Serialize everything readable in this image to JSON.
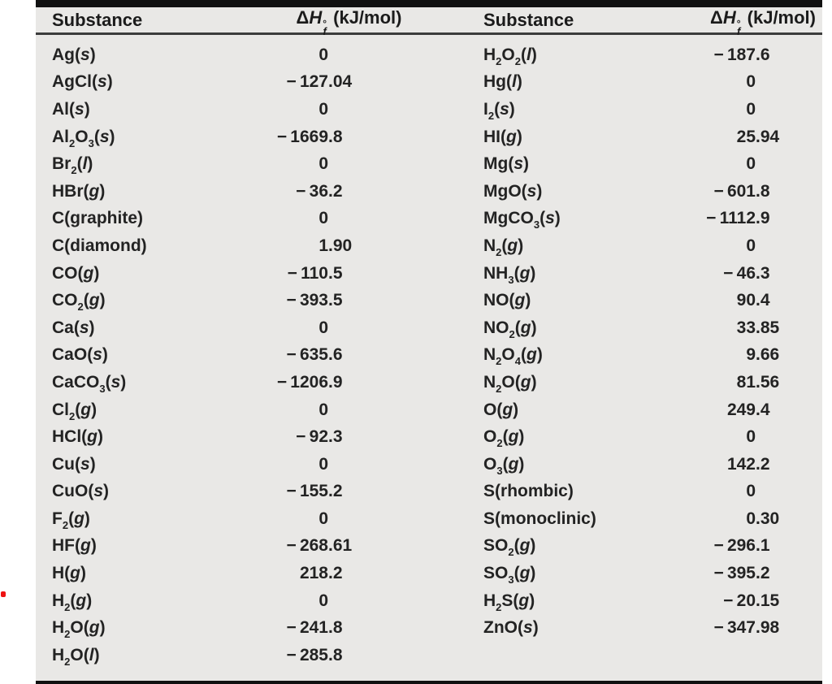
{
  "colors": {
    "panel_bg": "#e9e8e6",
    "border_black": "#111111",
    "header_rule": "#3c3c3c",
    "text": "#232323",
    "red_mark": "#ee1111"
  },
  "table": {
    "header": {
      "substance_label": "Substance",
      "dhf": {
        "delta": "Δ",
        "symbol": "H",
        "sup": "°",
        "sub": "f",
        "unit": " (kJ/mol)"
      }
    },
    "left_rows": [
      {
        "substance": "Ag(s)",
        "value": "0"
      },
      {
        "substance": "AgCl(s)",
        "value": "-127.04"
      },
      {
        "substance": "Al(s)",
        "value": "0"
      },
      {
        "substance": "Al2O3(s)",
        "value": "-1669.8"
      },
      {
        "substance": "Br2(l)",
        "value": "0"
      },
      {
        "substance": "HBr(g)",
        "value": "-36.2"
      },
      {
        "substance": "C(graphite)",
        "value": "0"
      },
      {
        "substance": "C(diamond)",
        "value": "1.90"
      },
      {
        "substance": "CO(g)",
        "value": "-110.5"
      },
      {
        "substance": "CO2(g)",
        "value": "-393.5"
      },
      {
        "substance": "Ca(s)",
        "value": "0"
      },
      {
        "substance": "CaO(s)",
        "value": "-635.6"
      },
      {
        "substance": "CaCO3(s)",
        "value": "-1206.9"
      },
      {
        "substance": "Cl2(g)",
        "value": "0"
      },
      {
        "substance": "HCl(g)",
        "value": "-92.3"
      },
      {
        "substance": "Cu(s)",
        "value": "0"
      },
      {
        "substance": "CuO(s)",
        "value": "-155.2"
      },
      {
        "substance": "F2(g)",
        "value": "0"
      },
      {
        "substance": "HF(g)",
        "value": "-268.61"
      },
      {
        "substance": "H(g)",
        "value": "218.2"
      },
      {
        "substance": "H2(g)",
        "value": "0"
      },
      {
        "substance": "H2O(g)",
        "value": "-241.8"
      },
      {
        "substance": "H2O(l)",
        "value": "-285.8"
      }
    ],
    "right_rows": [
      {
        "substance": "H2O2(l)",
        "value": "-187.6"
      },
      {
        "substance": "Hg(l)",
        "value": "0"
      },
      {
        "substance": "I2(s)",
        "value": "0"
      },
      {
        "substance": "HI(g)",
        "value": "25.94"
      },
      {
        "substance": "Mg(s)",
        "value": "0"
      },
      {
        "substance": "MgO(s)",
        "value": "-601.8"
      },
      {
        "substance": "MgCO3(s)",
        "value": "-1112.9"
      },
      {
        "substance": "N2(g)",
        "value": "0"
      },
      {
        "substance": "NH3(g)",
        "value": "-46.3"
      },
      {
        "substance": "NO(g)",
        "value": "90.4"
      },
      {
        "substance": "NO2(g)",
        "value": "33.85"
      },
      {
        "substance": "N2O4(g)",
        "value": "9.66"
      },
      {
        "substance": "N2O(g)",
        "value": "81.56"
      },
      {
        "substance": "O(g)",
        "value": "249.4"
      },
      {
        "substance": "O2(g)",
        "value": "0"
      },
      {
        "substance": "O3(g)",
        "value": "142.2"
      },
      {
        "substance": "S(rhombic)",
        "value": "0"
      },
      {
        "substance": "S(monoclinic)",
        "value": "0.30"
      },
      {
        "substance": "SO2(g)",
        "value": "-296.1"
      },
      {
        "substance": "SO3(g)",
        "value": "-395.2"
      },
      {
        "substance": "H2S(g)",
        "value": "-20.15"
      },
      {
        "substance": "ZnO(s)",
        "value": "-347.98"
      }
    ]
  }
}
